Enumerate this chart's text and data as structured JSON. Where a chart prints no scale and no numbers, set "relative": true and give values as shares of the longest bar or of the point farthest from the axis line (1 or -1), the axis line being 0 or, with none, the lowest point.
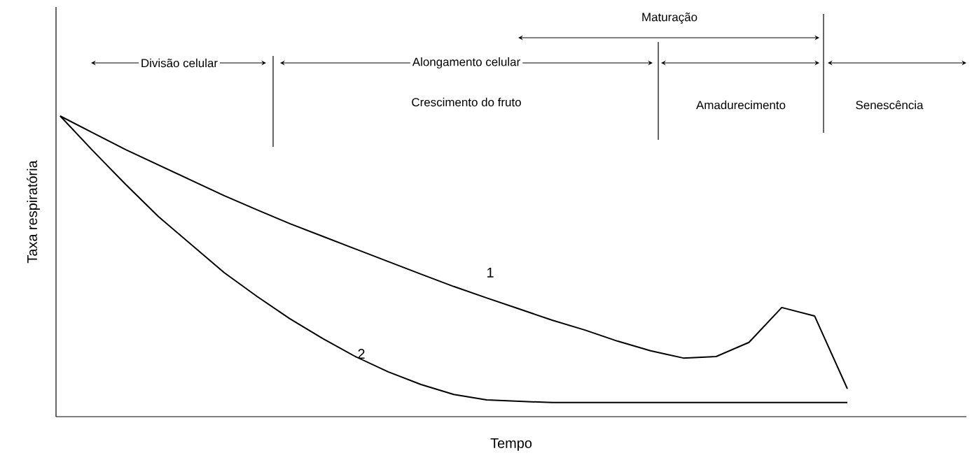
{
  "chart_data": {
    "type": "line",
    "relative": true,
    "xlabel": "Tempo",
    "ylabel": "Taxa respiratória",
    "categories": [
      null,
      null,
      null,
      null,
      null,
      null,
      null,
      null,
      null,
      null,
      null,
      null,
      null,
      null,
      null,
      null,
      null,
      null,
      null,
      null,
      null,
      null,
      null,
      null,
      null
    ],
    "series": [
      {
        "name": "1",
        "color": "#000000",
        "values": [
          1.0,
          0.944,
          0.888,
          0.837,
          0.786,
          0.735,
          0.688,
          0.642,
          0.6,
          0.558,
          0.516,
          0.474,
          0.433,
          0.395,
          0.358,
          0.321,
          0.288,
          0.251,
          0.219,
          0.195,
          0.2,
          0.247,
          0.363,
          0.335,
          0.093
        ]
      },
      {
        "name": "2",
        "color": "#000000",
        "values": [
          1.0,
          0.884,
          0.772,
          0.665,
          0.572,
          0.479,
          0.4,
          0.326,
          0.26,
          0.2,
          0.149,
          0.107,
          0.074,
          0.056,
          0.051,
          0.047,
          0.047,
          0.047,
          0.047,
          0.047,
          0.047,
          0.047,
          0.047,
          0.047,
          0.047
        ]
      }
    ],
    "annotations": [
      "Maturação",
      "Divisão celular",
      "Alongamento celular",
      "Crescimento do fruto",
      "Amadurecimento",
      "Senescência"
    ],
    "legend": false,
    "marker": "none",
    "line_style": "solid"
  }
}
